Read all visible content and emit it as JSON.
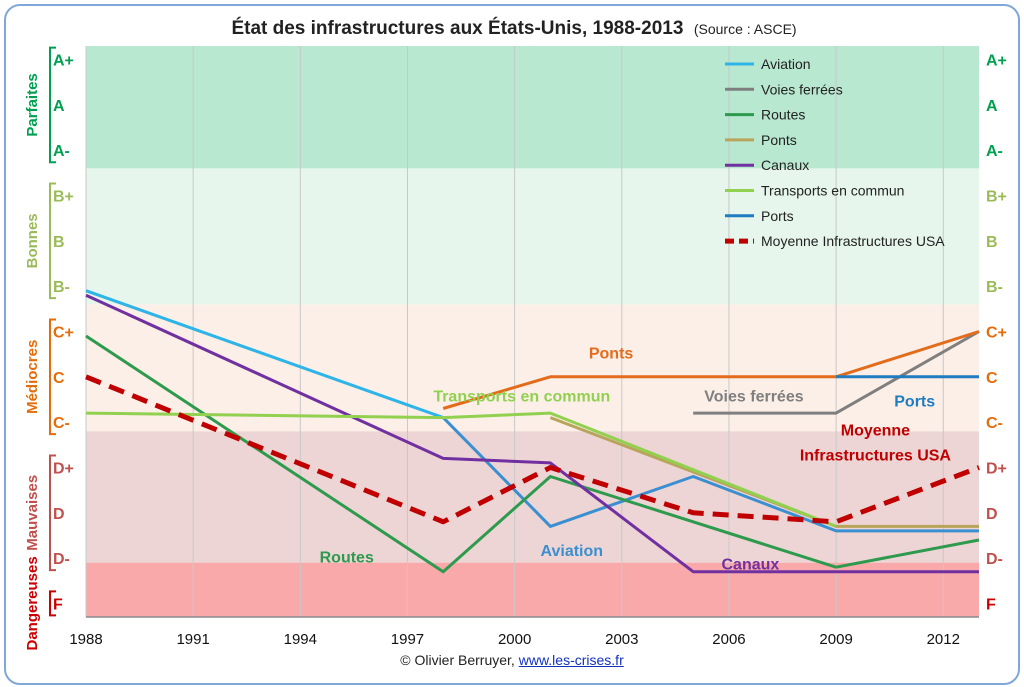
{
  "chart_data": {
    "type": "line",
    "title": "État des infrastructures aux États-Unis, 1988-2013",
    "subtitle": "(Source : ASCE)",
    "x_ticks": [
      1988,
      1991,
      1994,
      1997,
      2000,
      2003,
      2006,
      2009,
      2012
    ],
    "xlim": [
      1988,
      2013
    ],
    "grade_scale": {
      "F": 0,
      "D-": 1,
      "D": 2,
      "D+": 3,
      "C-": 4,
      "C": 5,
      "C+": 6,
      "B-": 7,
      "B": 8,
      "B+": 9,
      "A-": 10,
      "A": 11,
      "A+": 12
    },
    "ylim": [
      0,
      12.5
    ],
    "grade_labels": [
      "F",
      "D-",
      "D",
      "D+",
      "C-",
      "C",
      "C+",
      "B-",
      "B",
      "B+",
      "A-",
      "A",
      "A+"
    ],
    "bands": [
      {
        "name": "Dangereuses",
        "from": -0.3,
        "to": 0.9,
        "fill": "#f9a9a9",
        "label_color": "#cc0000",
        "grades": [
          "F"
        ]
      },
      {
        "name": "Mauvaises",
        "from": 0.9,
        "to": 3.8,
        "fill": "#eed5d5",
        "label_color": "#c0504d",
        "grades": [
          "D-",
          "D",
          "D+"
        ]
      },
      {
        "name": "Médiocres",
        "from": 3.8,
        "to": 6.6,
        "fill": "#fcefe8",
        "label_color": "#e46c0a",
        "grades": [
          "C-",
          "C",
          "C+"
        ]
      },
      {
        "name": "Bonnes",
        "from": 6.6,
        "to": 9.6,
        "fill": "#e6f6ec",
        "label_color": "#9bbb59",
        "grades": [
          "B-",
          "B",
          "B+"
        ]
      },
      {
        "name": "Parfaites",
        "from": 9.6,
        "to": 12.3,
        "fill": "#b8e8d0",
        "label_color": "#00a050",
        "grades": [
          "A-",
          "A",
          "A+"
        ]
      }
    ],
    "series": [
      {
        "name": "Aviation",
        "color": "#2eb4e6",
        "points": [
          [
            1988,
            6.9
          ],
          [
            1998,
            4.1
          ]
        ]
      },
      {
        "name": "Aviation",
        "color": "#3a8fd0",
        "legend": false,
        "points": [
          [
            1998,
            4.1
          ],
          [
            2001,
            1.7
          ],
          [
            2005,
            2.8
          ],
          [
            2009,
            1.6
          ],
          [
            2013,
            1.6
          ]
        ]
      },
      {
        "name": "Voies ferrées",
        "color": "#7f7f7f",
        "points": [
          [
            2005,
            4.2
          ],
          [
            2009,
            4.2
          ],
          [
            2013,
            6.0
          ]
        ]
      },
      {
        "name": "Routes",
        "color": "#2e9a4e",
        "points": [
          [
            1988,
            5.9
          ],
          [
            1998,
            0.7
          ],
          [
            2001,
            2.8
          ],
          [
            2009,
            0.8
          ],
          [
            2013,
            1.4
          ]
        ]
      },
      {
        "name": "Ponts",
        "color": "#e36c1c",
        "points": [
          [
            1998,
            4.3
          ],
          [
            2001,
            5.0
          ],
          [
            2009,
            5.0
          ],
          [
            2013,
            6.0
          ]
        ]
      },
      {
        "name": "Ponts",
        "color": "#b8a45a",
        "legend": false,
        "points": [
          [
            2001,
            4.1
          ],
          [
            2009,
            1.7
          ],
          [
            2013,
            1.7
          ]
        ]
      },
      {
        "name": "Canaux",
        "color": "#7030a0",
        "points": [
          [
            1988,
            6.8
          ],
          [
            1998,
            3.2
          ],
          [
            2001,
            3.1
          ],
          [
            2005,
            0.7
          ],
          [
            2013,
            0.7
          ]
        ]
      },
      {
        "name": "Transports en commun",
        "color": "#92d050",
        "points": [
          [
            1988,
            4.2
          ],
          [
            1998,
            4.1
          ],
          [
            2001,
            4.2
          ],
          [
            2009,
            1.7
          ]
        ]
      },
      {
        "name": "Ports",
        "color": "#1f7cc0",
        "points": [
          [
            2009,
            5.0
          ],
          [
            2013,
            5.0
          ]
        ]
      },
      {
        "name": "Moyenne Infrastructures USA",
        "color": "#c00000",
        "dashed": true,
        "points": [
          [
            1988,
            5.0
          ],
          [
            1998,
            1.8
          ],
          [
            2001,
            3.0
          ],
          [
            2005,
            2.0
          ],
          [
            2009,
            1.8
          ],
          [
            2013,
            3.0
          ]
        ]
      }
    ],
    "annotations": [
      {
        "text": "Ponts",
        "color": "#e36c1c",
        "x": 2002.7,
        "y": 5.4
      },
      {
        "text": "Transports en commun",
        "color": "#92d050",
        "x": 2000.2,
        "y": 4.45
      },
      {
        "text": "Voies ferrées",
        "color": "#7f7f7f",
        "x": 2006.7,
        "y": 4.45
      },
      {
        "text": "Ports",
        "color": "#1f7cc0",
        "x": 2011.2,
        "y": 4.35
      },
      {
        "text": "Moyenne",
        "color": "#c00000",
        "x": 2010.1,
        "y": 3.7
      },
      {
        "text": "Infrastructures USA",
        "color": "#c00000",
        "x": 2010.1,
        "y": 3.15
      },
      {
        "text": "Routes",
        "color": "#2e9a4e",
        "x": 1995.3,
        "y": 0.9
      },
      {
        "text": "Aviation",
        "color": "#3a8fd0",
        "x": 2001.6,
        "y": 1.05
      },
      {
        "text": "Canaux",
        "color": "#7030a0",
        "x": 2006.6,
        "y": 0.75
      }
    ],
    "legend": {
      "position": "top-right",
      "items": [
        {
          "label": "Aviation",
          "color": "#2eb4e6",
          "dashed": false
        },
        {
          "label": "Voies ferrées",
          "color": "#7f7f7f",
          "dashed": false
        },
        {
          "label": "Routes",
          "color": "#2e9a4e",
          "dashed": false
        },
        {
          "label": "Ponts",
          "color": "#b8a45a",
          "dashed": false
        },
        {
          "label": "Canaux",
          "color": "#7030a0",
          "dashed": false
        },
        {
          "label": "Transports en commun",
          "color": "#92d050",
          "dashed": false
        },
        {
          "label": "Ports",
          "color": "#1f7cc0",
          "dashed": false
        },
        {
          "label": "Moyenne Infrastructures USA",
          "color": "#c00000",
          "dashed": true
        }
      ]
    }
  },
  "footer": {
    "copyright": "© Olivier Berruyer,",
    "link": "www.les-crises.fr"
  }
}
